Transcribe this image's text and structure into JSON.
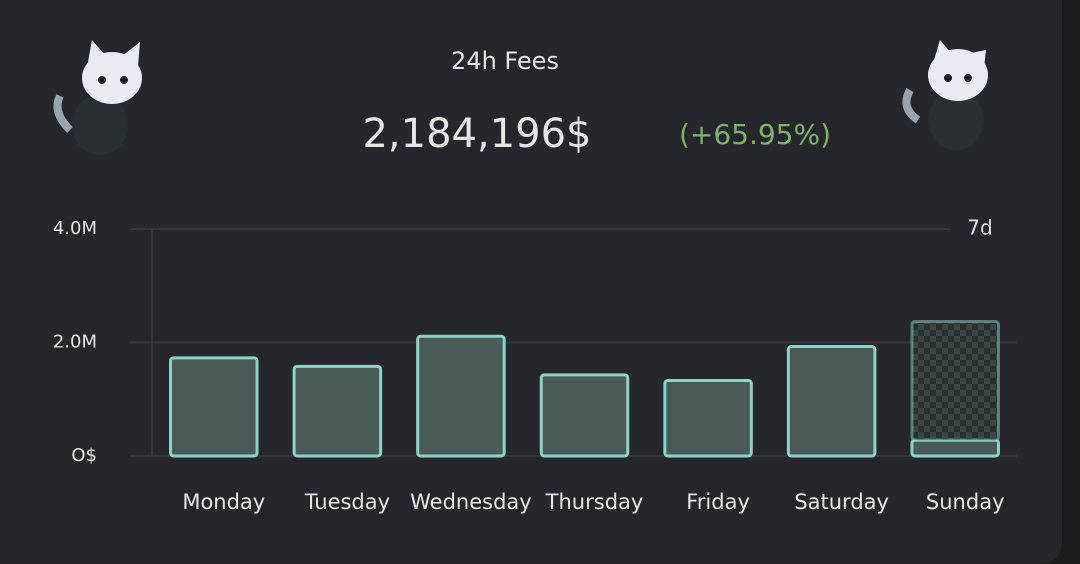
{
  "chart_data": {
    "type": "bar",
    "title": "24h Fees",
    "total": "2,184,196$",
    "change": "(+65.95%)",
    "period": "7d",
    "categories": [
      "Monday",
      "Tuesday",
      "Wednesday",
      "Thursday",
      "Friday",
      "Saturday",
      "Sunday"
    ],
    "series": [
      {
        "color": "#8fd3c7",
        "values": [
          1730000,
          1580000,
          2110000,
          1430000,
          1330000,
          1930000,
          280000
        ]
      },
      {
        "color": "#8fd3c7",
        "values": [
          null,
          null,
          null,
          null,
          null,
          null,
          2090000
        ]
      }
    ],
    "ylim": [
      0,
      4000000
    ],
    "yticks": [
      {
        "value": 0,
        "label": "O$"
      },
      {
        "value": 2000000,
        "label": "2.0M"
      },
      {
        "value": 4000000,
        "label": "4.0M"
      }
    ],
    "grid": true
  }
}
